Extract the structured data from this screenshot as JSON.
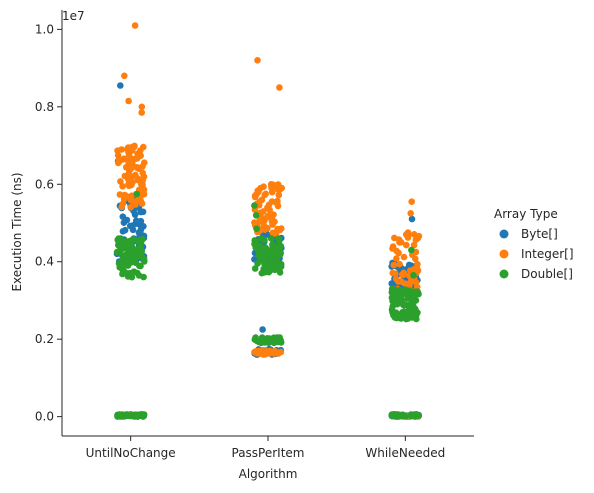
{
  "chart_data": {
    "type": "scatter",
    "title": "",
    "xlabel": "Algorithm",
    "ylabel": "Execution Time (ns)",
    "y_multiplier_label": "1e7",
    "categories": [
      "UntilNoChange",
      "PassPerItem",
      "WhileNeeded"
    ],
    "ylim": [
      -0.05,
      1.05
    ],
    "yticks": [
      0.0,
      0.2,
      0.4,
      0.6,
      0.8,
      1.0
    ],
    "ytick_labels": [
      "0.0",
      "0.2",
      "0.4",
      "0.6",
      "0.8",
      "1.0"
    ],
    "grid": false,
    "legend": {
      "title": "Array Type",
      "position": "right",
      "entries": [
        {
          "label": "Byte[]",
          "color": "#1f77b4"
        },
        {
          "label": "Integer[]",
          "color": "#ff7f0e"
        },
        {
          "label": "Double[]",
          "color": "#2ca02c"
        }
      ]
    },
    "series": [
      {
        "name": "Byte[]",
        "color": "#1f77b4",
        "clusters": [
          {
            "category": "UntilNoChange",
            "low": 0.0,
            "high": 0.006,
            "count": 25
          },
          {
            "category": "UntilNoChange",
            "low": 0.4,
            "high": 0.56,
            "count": 70
          },
          {
            "category": "PassPerItem",
            "low": 0.16,
            "high": 0.175,
            "count": 35
          },
          {
            "category": "PassPerItem",
            "low": 0.38,
            "high": 0.48,
            "count": 40
          },
          {
            "category": "WhileNeeded",
            "low": 0.0,
            "high": 0.006,
            "count": 25
          },
          {
            "category": "WhileNeeded",
            "low": 0.33,
            "high": 0.4,
            "count": 40
          }
        ],
        "outliers": [
          {
            "category": "UntilNoChange",
            "y": 0.855
          },
          {
            "category": "UntilNoChange",
            "y": 0.66
          },
          {
            "category": "PassPerItem",
            "y": 0.225
          },
          {
            "category": "WhileNeeded",
            "y": 0.51
          }
        ]
      },
      {
        "name": "Integer[]",
        "color": "#ff7f0e",
        "clusters": [
          {
            "category": "UntilNoChange",
            "low": 0.0,
            "high": 0.006,
            "count": 20
          },
          {
            "category": "UntilNoChange",
            "low": 0.54,
            "high": 0.7,
            "count": 90
          },
          {
            "category": "PassPerItem",
            "low": 0.16,
            "high": 0.17,
            "count": 35
          },
          {
            "category": "PassPerItem",
            "low": 0.47,
            "high": 0.6,
            "count": 70
          },
          {
            "category": "WhileNeeded",
            "low": 0.0,
            "high": 0.006,
            "count": 20
          },
          {
            "category": "WhileNeeded",
            "low": 0.32,
            "high": 0.48,
            "count": 55
          }
        ],
        "outliers": [
          {
            "category": "UntilNoChange",
            "y": 1.01
          },
          {
            "category": "UntilNoChange",
            "y": 0.88
          },
          {
            "category": "UntilNoChange",
            "y": 0.815
          },
          {
            "category": "UntilNoChange",
            "y": 0.8
          },
          {
            "category": "UntilNoChange",
            "y": 0.785
          },
          {
            "category": "PassPerItem",
            "y": 0.92
          },
          {
            "category": "PassPerItem",
            "y": 0.85
          },
          {
            "category": "WhileNeeded",
            "y": 0.555
          },
          {
            "category": "WhileNeeded",
            "y": 0.525
          }
        ]
      },
      {
        "name": "Double[]",
        "color": "#2ca02c",
        "clusters": [
          {
            "category": "UntilNoChange",
            "low": 0.0,
            "high": 0.006,
            "count": 35
          },
          {
            "category": "UntilNoChange",
            "low": 0.36,
            "high": 0.46,
            "count": 80
          },
          {
            "category": "PassPerItem",
            "low": 0.19,
            "high": 0.205,
            "count": 35
          },
          {
            "category": "PassPerItem",
            "low": 0.37,
            "high": 0.46,
            "count": 80
          },
          {
            "category": "WhileNeeded",
            "low": 0.0,
            "high": 0.006,
            "count": 35
          },
          {
            "category": "WhileNeeded",
            "low": 0.25,
            "high": 0.33,
            "count": 90
          }
        ],
        "outliers": [
          {
            "category": "UntilNoChange",
            "y": 0.575
          },
          {
            "category": "PassPerItem",
            "y": 0.545
          },
          {
            "category": "PassPerItem",
            "y": 0.52
          },
          {
            "category": "PassPerItem",
            "y": 0.485
          },
          {
            "category": "WhileNeeded",
            "y": 0.43
          },
          {
            "category": "WhileNeeded",
            "y": 0.365
          }
        ]
      }
    ]
  }
}
